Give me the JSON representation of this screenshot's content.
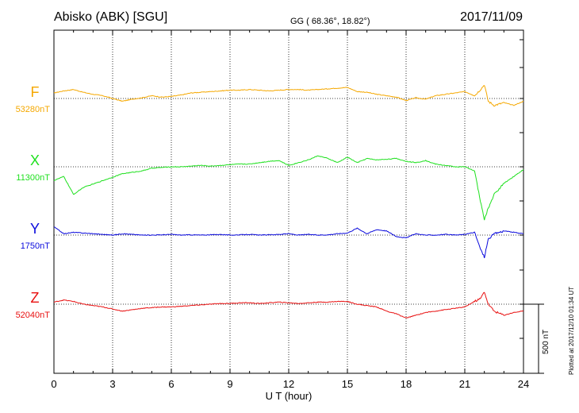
{
  "header": {
    "station": "Abisko (ABK)  [SGU]",
    "coords": "GG ( 68.36°,  18.82°)",
    "date": "2017/11/09"
  },
  "footer": {
    "plotted": "Plotted at 2017/12/10 01:34 UT"
  },
  "scale_bar": {
    "label": "500 nT",
    "value": 500
  },
  "colors": {
    "F": "#f5a800",
    "X": "#1ee01e",
    "Y": "#0a0adc",
    "Z": "#e81010",
    "axis": "#000000",
    "grid": "#000000"
  },
  "chart_data": {
    "type": "line",
    "title": "Abisko (ABK)  [SGU]",
    "xlabel": "U T (hour)",
    "ylabel": "",
    "xlim": [
      0,
      24
    ],
    "xticks": [
      "0",
      "3",
      "6",
      "9",
      "12",
      "15",
      "18",
      "21",
      "24"
    ],
    "grid": true,
    "series": [
      {
        "name": "F",
        "baseline_label": "53280nT",
        "baseline": 53280,
        "color": "#f5a800",
        "x": [
          0,
          0.5,
          1,
          1.5,
          2,
          2.5,
          3,
          3.5,
          4,
          4.5,
          5,
          5.5,
          6,
          6.5,
          7,
          7.5,
          8,
          8.5,
          9,
          9.5,
          10,
          10.5,
          11,
          11.5,
          12,
          12.5,
          13,
          13.5,
          14,
          14.5,
          15,
          15.5,
          16,
          16.5,
          17,
          17.5,
          18,
          18.5,
          19,
          19.5,
          20,
          20.5,
          21,
          21.5,
          21.8,
          22,
          22.2,
          22.5,
          23,
          23.5,
          24
        ],
        "y": [
          53320,
          53335,
          53345,
          53325,
          53310,
          53300,
          53280,
          53260,
          53275,
          53285,
          53300,
          53290,
          53295,
          53305,
          53320,
          53325,
          53330,
          53335,
          53340,
          53340,
          53345,
          53340,
          53335,
          53340,
          53345,
          53345,
          53340,
          53345,
          53350,
          53355,
          53360,
          53330,
          53325,
          53310,
          53300,
          53290,
          53265,
          53285,
          53275,
          53300,
          53310,
          53320,
          53330,
          53300,
          53345,
          53380,
          53260,
          53230,
          53250,
          53230,
          53260
        ]
      },
      {
        "name": "X",
        "baseline_label": "11300nT",
        "baseline": 11300,
        "color": "#1ee01e",
        "x": [
          0,
          0.5,
          1,
          1.5,
          2,
          2.5,
          3,
          3.5,
          4,
          4.5,
          5,
          5.5,
          6,
          6.5,
          7,
          7.5,
          8,
          8.5,
          9,
          9.5,
          10,
          10.5,
          11,
          11.5,
          12,
          12.5,
          13,
          13.5,
          14,
          14.5,
          15,
          15.5,
          16,
          16.5,
          17,
          17.5,
          18,
          18.5,
          19,
          19.5,
          20,
          20.5,
          21,
          21.5,
          21.8,
          22,
          22.2,
          22.5,
          23,
          23.5,
          24
        ],
        "y": [
          11200,
          11230,
          11100,
          11150,
          11175,
          11200,
          11225,
          11250,
          11260,
          11270,
          11290,
          11295,
          11300,
          11300,
          11305,
          11310,
          11305,
          11310,
          11315,
          11320,
          11320,
          11330,
          11340,
          11345,
          11310,
          11330,
          11350,
          11380,
          11360,
          11330,
          11370,
          11330,
          11360,
          11350,
          11355,
          11360,
          11340,
          11330,
          11345,
          11320,
          11310,
          11300,
          11300,
          11270,
          11050,
          10920,
          11000,
          11100,
          11180,
          11230,
          11280
        ]
      },
      {
        "name": "Y",
        "baseline_label": "1750nT",
        "baseline": 1750,
        "color": "#0a0adc",
        "x": [
          0,
          0.5,
          1,
          1.5,
          2,
          2.5,
          3,
          3.5,
          4,
          4.5,
          5,
          5.5,
          6,
          6.5,
          7,
          7.5,
          8,
          8.5,
          9,
          9.5,
          10,
          10.5,
          11,
          11.5,
          12,
          12.5,
          13,
          13.5,
          14,
          14.5,
          15,
          15.5,
          16,
          16.5,
          17,
          17.5,
          18,
          18.5,
          19,
          19.5,
          20,
          20.5,
          21,
          21.5,
          21.8,
          22,
          22.2,
          22.5,
          23,
          23.5,
          24
        ],
        "y": [
          1810,
          1760,
          1770,
          1765,
          1760,
          1755,
          1750,
          1760,
          1755,
          1750,
          1750,
          1752,
          1755,
          1750,
          1752,
          1750,
          1752,
          1755,
          1750,
          1752,
          1755,
          1750,
          1752,
          1755,
          1760,
          1750,
          1755,
          1750,
          1752,
          1760,
          1765,
          1800,
          1760,
          1790,
          1780,
          1740,
          1730,
          1760,
          1750,
          1750,
          1755,
          1750,
          1755,
          1770,
          1650,
          1590,
          1720,
          1760,
          1780,
          1770,
          1760
        ]
      },
      {
        "name": "Z",
        "baseline_label": "52040nT",
        "baseline": 52040,
        "color": "#e81010",
        "x": [
          0,
          0.5,
          1,
          1.5,
          2,
          2.5,
          3,
          3.5,
          4,
          4.5,
          5,
          5.5,
          6,
          6.5,
          7,
          7.5,
          8,
          8.5,
          9,
          9.5,
          10,
          10.5,
          11,
          11.5,
          12,
          12.5,
          13,
          13.5,
          14,
          14.5,
          15,
          15.5,
          16,
          16.5,
          17,
          17.5,
          18,
          18.5,
          19,
          19.5,
          20,
          20.5,
          21,
          21.5,
          21.8,
          22,
          22.2,
          22.5,
          23,
          23.5,
          24
        ],
        "y": [
          52055,
          52070,
          52060,
          52040,
          52030,
          52020,
          52005,
          51990,
          52000,
          52010,
          52015,
          52020,
          52020,
          52025,
          52030,
          52035,
          52040,
          52045,
          52045,
          52050,
          52050,
          52045,
          52050,
          52055,
          52050,
          52045,
          52050,
          52055,
          52055,
          52060,
          52060,
          52040,
          52030,
          52020,
          51990,
          51970,
          51940,
          51960,
          51980,
          51990,
          52000,
          52010,
          52020,
          52060,
          52080,
          52130,
          52040,
          51990,
          51960,
          51980,
          51990
        ]
      }
    ]
  }
}
